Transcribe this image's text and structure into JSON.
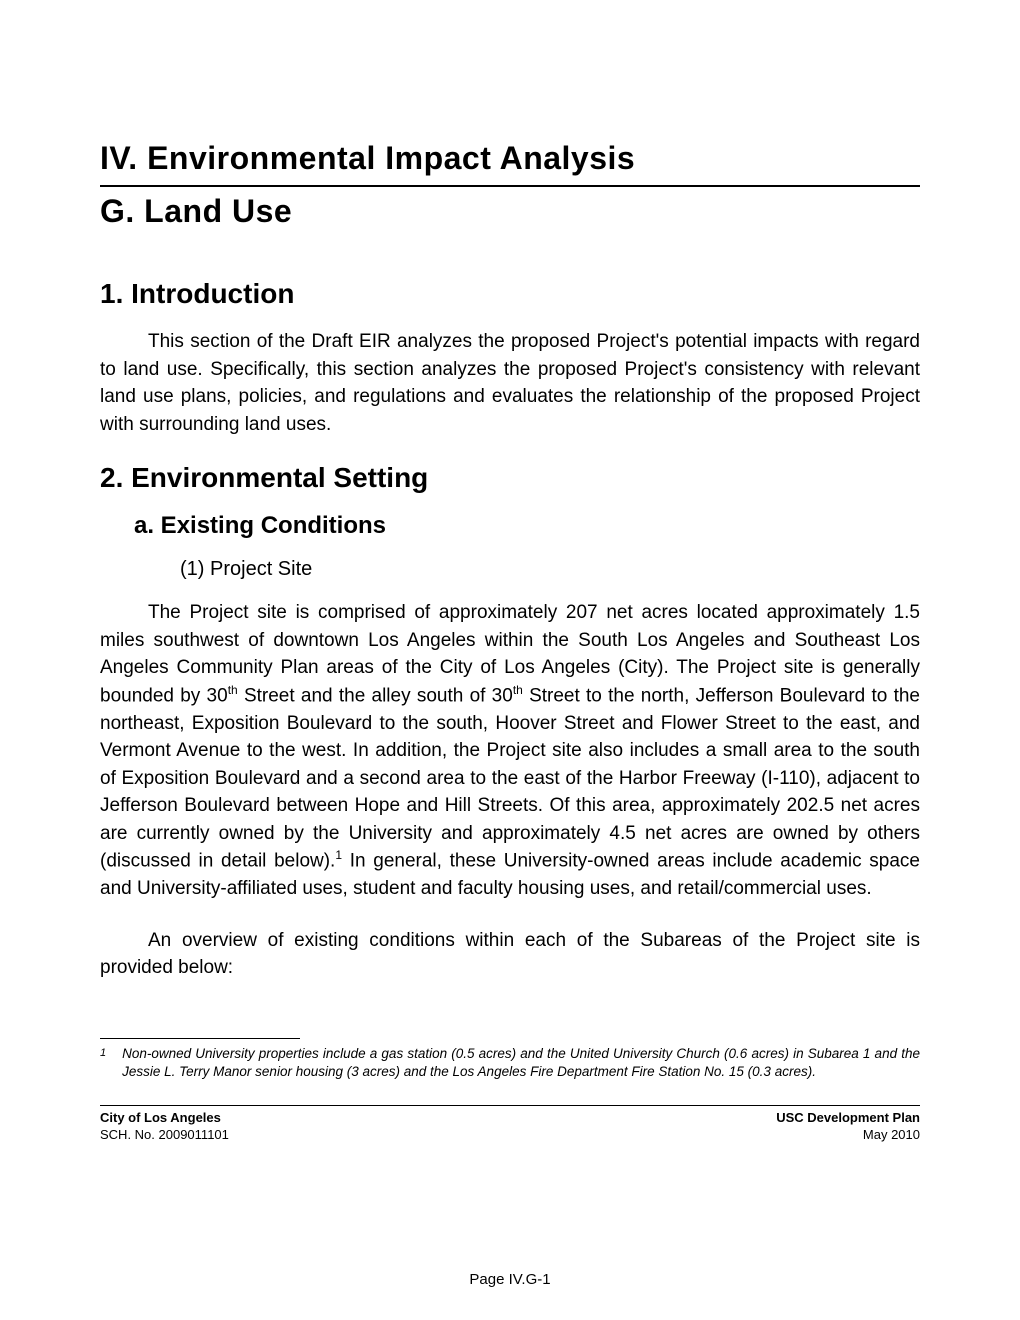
{
  "header": {
    "title_main": "IV.  Environmental Impact Analysis",
    "title_sub": "G.   Land Use"
  },
  "sections": {
    "intro_heading": "1.  Introduction",
    "intro_para": "This section of the Draft EIR analyzes the proposed Project's potential impacts with regard to land use.  Specifically, this section analyzes the proposed Project's consistency with relevant land use plans, policies, and regulations and evaluates the relationship of the proposed Project with surrounding land uses.",
    "env_heading": "2.  Environmental Setting",
    "existing_heading": "a.  Existing Conditions",
    "project_site_heading": "(1)  Project Site",
    "project_site_para1_before30a": "The Project site is comprised of approximately 207 net acres located approximately 1.5 miles southwest of downtown Los Angeles within the South Los Angeles and Southeast Los Angeles Community Plan areas of the City of Los Angeles (City).  The Project site is generally bounded by 30",
    "project_site_para1_between30": " Street and the alley south of 30",
    "project_site_para1_after30b": " Street to the north, Jefferson Boulevard to the northeast, Exposition Boulevard to the south, Hoover Street and Flower Street to the east, and Vermont Avenue to the west.  In addition, the Project site also includes a small area to the south of Exposition Boulevard and a second area to the east of the Harbor Freeway (I-110), adjacent to Jefferson Boulevard between Hope and Hill Streets.  Of this area, approximately 202.5 net acres are currently owned by the University and approximately 4.5 net acres are owned by others (discussed in detail below).",
    "project_site_para1_afterfn": "  In general, these University-owned areas include academic space and University-affiliated uses, student and faculty housing uses, and retail/commercial uses.",
    "project_site_para2": "An overview of existing conditions within each of the Subareas of the Project site is provided below:",
    "th_sup": "th",
    "fn_sup": "1"
  },
  "footnote": {
    "num": "1",
    "text": "Non-owned University properties include a gas station (0.5 acres) and the United University Church (0.6 acres) in Subarea 1 and the Jessie L. Terry Manor senior housing (3 acres) and the Los Angeles Fire Department Fire Station No. 15 (0.3 acres)."
  },
  "footer": {
    "left_bold": "City of Los Angeles",
    "left_plain": "SCH. No. 2009011101",
    "right_bold": "USC Development Plan",
    "right_plain": "May 2010",
    "page_number": "Page IV.G-1"
  }
}
